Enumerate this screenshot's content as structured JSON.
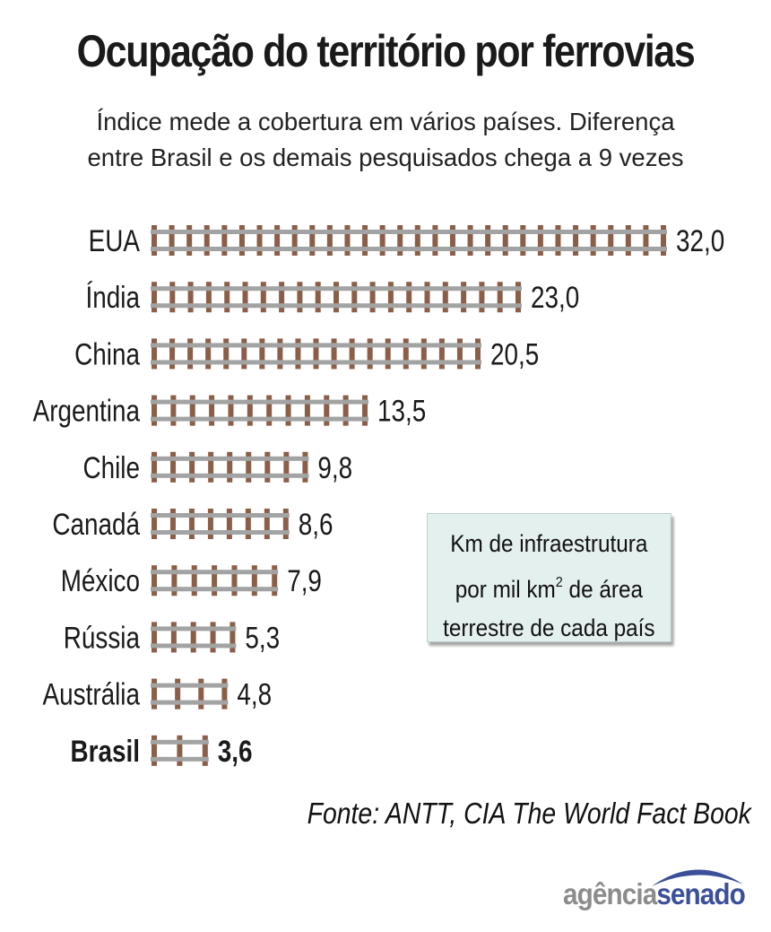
{
  "header": {
    "title": "Ocupação do território por ferrovias",
    "subtitle_line1": "Índice mede a cobertura em vários países. Diferença",
    "subtitle_line2": "entre Brasil e os demais pesquisados chega a 9 vezes"
  },
  "legend": {
    "line1": "Km de infraestrutura",
    "line2_pre": "por mil km",
    "line2_sup": "2",
    "line2_post": " de área",
    "line3": "terrestre de cada país"
  },
  "source": "Fonte: ANTT, CIA The World Fact Book",
  "logo": {
    "part1": "agência",
    "part2": "senado"
  },
  "colors": {
    "rail": "#a3a3a3",
    "tie": "#8b5e48",
    "legend_bg": "#e4f0ee",
    "logo_blue": "#3c4f99"
  },
  "chart_data": {
    "type": "bar",
    "orientation": "horizontal",
    "categories": [
      "EUA",
      "Índia",
      "China",
      "Argentina",
      "Chile",
      "Canadá",
      "México",
      "Rússia",
      "Austrália",
      "Brasil"
    ],
    "values": [
      32.0,
      23.0,
      20.5,
      13.5,
      9.8,
      8.6,
      7.9,
      5.3,
      4.8,
      3.6
    ],
    "value_labels": [
      "32,0",
      "23,0",
      "20,5",
      "13,5",
      "9,8",
      "8,6",
      "7,9",
      "5,3",
      "4,8",
      "3,6"
    ],
    "highlight": "Brasil",
    "unit": "Km de infraestrutura por mil km² de área terrestre de cada país",
    "xlim": [
      0,
      32
    ]
  }
}
